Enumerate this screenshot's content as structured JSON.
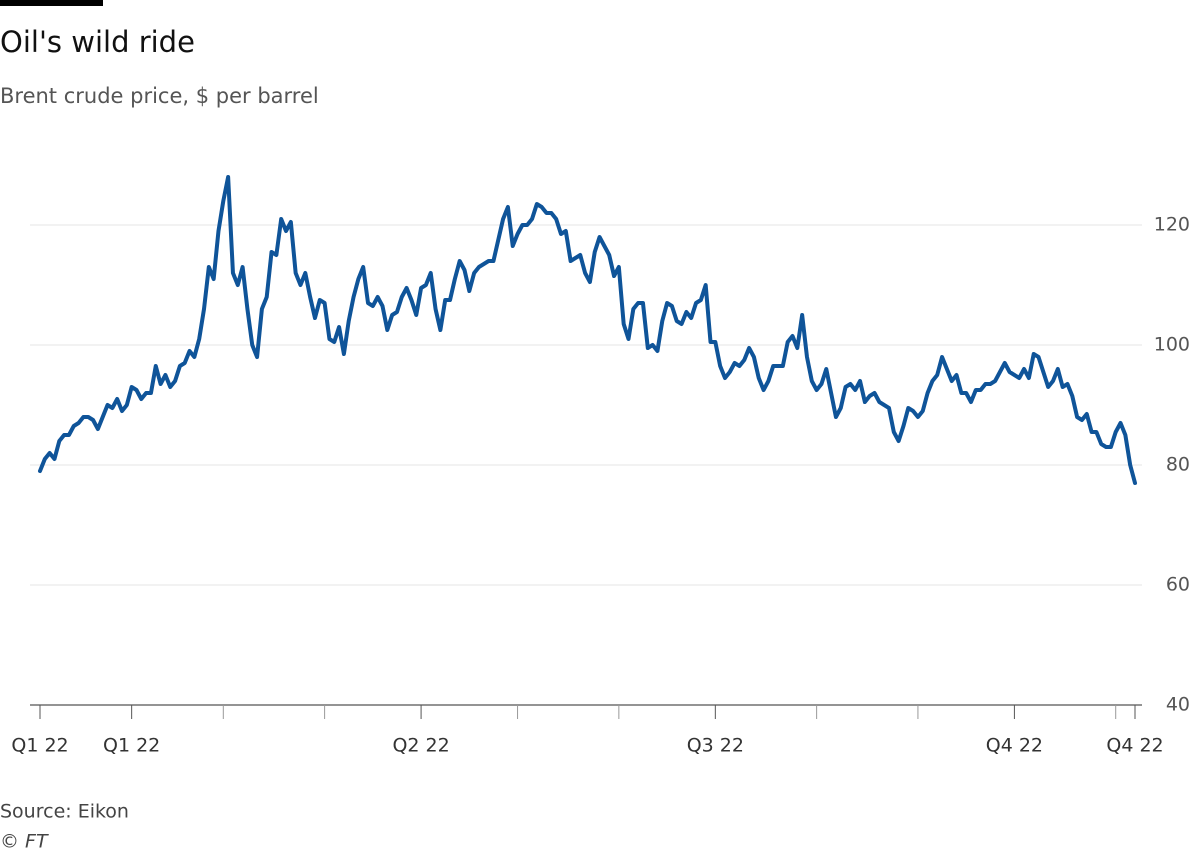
{
  "chart_data": {
    "type": "line",
    "title": "Oil's wild ride",
    "subtitle": "Brent crude price, $ per barrel",
    "source": "Source: Eikon",
    "credit": "© FT",
    "series": [
      {
        "name": "Brent crude",
        "color": "#0f5499",
        "values": [
          79,
          81,
          82,
          81,
          84,
          85,
          85,
          86.5,
          87,
          88,
          88,
          87.5,
          86,
          88,
          90,
          89.5,
          91,
          89,
          90,
          93,
          92.5,
          91,
          92,
          92,
          96.5,
          93.5,
          95,
          93,
          94,
          96.5,
          97,
          99,
          98,
          101,
          106,
          113,
          111,
          119,
          124,
          128,
          112,
          110,
          113,
          106,
          100,
          98,
          106,
          108,
          115.5,
          115,
          121,
          119,
          120.5,
          112,
          110,
          112,
          108,
          104.5,
          107.5,
          107,
          101,
          100.5,
          103,
          98.5,
          104,
          108,
          111,
          113,
          107,
          106.5,
          108,
          106.5,
          102.5,
          105,
          105.5,
          108,
          109.5,
          107.5,
          105,
          109.5,
          110,
          112,
          106,
          102.5,
          107.5,
          107.5,
          111,
          114,
          112.5,
          109,
          112,
          113,
          113.5,
          114,
          114,
          117.5,
          121,
          123,
          116.5,
          118.5,
          120,
          120,
          121,
          123.5,
          123,
          122,
          122,
          121,
          118.5,
          119,
          114,
          114.5,
          115,
          112,
          110.5,
          115.5,
          118,
          116.5,
          115,
          111.5,
          113,
          103.5,
          101,
          106,
          107,
          107,
          99.5,
          100,
          99,
          104,
          107,
          106.5,
          104,
          103.5,
          105.5,
          104.5,
          107,
          107.5,
          110,
          100.5,
          100.5,
          96.5,
          94.5,
          95.5,
          97,
          96.5,
          97.5,
          99.5,
          98,
          94.5,
          92.5,
          94,
          96.5,
          96.5,
          96.5,
          100.5,
          101.5,
          99.5,
          105,
          98,
          94,
          92.5,
          93.5,
          96,
          92,
          88,
          89.5,
          93,
          93.5,
          92.5,
          94,
          90.5,
          91.5,
          92,
          90.5,
          90,
          89.5,
          85.5,
          84,
          86.5,
          89.5,
          89,
          88,
          89,
          92,
          94,
          95,
          98,
          96,
          94,
          95,
          92,
          92,
          90.5,
          92.5,
          92.5,
          93.5,
          93.5,
          94,
          95.5,
          97,
          95.5,
          95,
          94.5,
          96,
          94.5,
          98.5,
          98,
          95.5,
          93,
          94,
          96,
          93,
          93.5,
          91.5,
          88,
          87.5,
          88.5,
          85.5,
          85.5,
          83.5,
          83,
          83,
          85.5,
          87,
          85,
          80,
          77
        ]
      }
    ],
    "xlim": [
      0,
      227
    ],
    "xticks": [
      {
        "value": 0,
        "label": "Q1 22"
      },
      {
        "value": 19,
        "label": "Q1 22"
      },
      {
        "value": 79,
        "label": "Q2 22"
      },
      {
        "value": 140,
        "label": "Q3 22"
      },
      {
        "value": 202,
        "label": "Q4 22"
      },
      {
        "value": 227,
        "label": "Q4 22"
      }
    ],
    "xminorticks": [
      38,
      59,
      99,
      120,
      161,
      182,
      223
    ],
    "ylim": [
      40,
      130
    ],
    "yticks": [
      40,
      60,
      80,
      100,
      120
    ],
    "grid": true,
    "y_axis_side": "right"
  }
}
